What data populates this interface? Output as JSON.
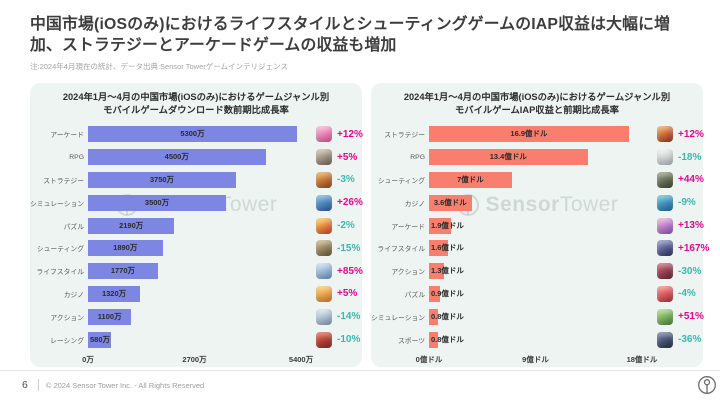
{
  "header": {
    "title": "中国市場(iOSのみ)におけるライフスタイルとシューティングゲームのIAP収益は大幅に増加、ストラテジーとアーケードゲームの収益も増加",
    "note": "注:2024年4月現在の統計、データ出典:Sensor Towerゲームインテリジェンス"
  },
  "watermark": {
    "brand_bold": "Sensor",
    "brand_light": "Tower"
  },
  "colors": {
    "positive_growth": "#e8078c",
    "negative_growth": "#3db9ac",
    "download_bar": "#7e86e3",
    "revenue_bar": "#f97e6d",
    "panel_background": "#edf4f2"
  },
  "chart_data": [
    {
      "type": "bar",
      "orientation": "horizontal",
      "title": "2024年1月〜4月の中国市場(iOSのみ)におけるゲームジャンル別",
      "subtitle": "モバイルゲームダウンロード数前期比成長率",
      "unit": "万",
      "xlim": [
        0,
        5400
      ],
      "x_ticks": [
        "0万",
        "2700万",
        "5400万"
      ],
      "grid": false,
      "bar_color": "#7e86e3",
      "categories": [
        "アーケード",
        "RPG",
        "ストラテジー",
        "シミュレーション",
        "パズル",
        "シューティング",
        "ライフスタイル",
        "カジノ",
        "アクション",
        "レーシング"
      ],
      "values": [
        5300,
        4500,
        3750,
        3500,
        2190,
        1890,
        1770,
        1320,
        1100,
        580
      ],
      "value_labels": [
        "5300万",
        "4500万",
        "3750万",
        "3500万",
        "2190万",
        "1890万",
        "1770万",
        "1320万",
        "1100万",
        "580万"
      ],
      "growth_rates": [
        "+12%",
        "+5%",
        "-3%",
        "+26%",
        "-2%",
        "-15%",
        "+85%",
        "+5%",
        "-14%",
        "-10%"
      ],
      "icons": [
        {
          "name": "arcade-game-app-icon",
          "colors": [
            "#f9b8d8",
            "#e8569c"
          ]
        },
        {
          "name": "rpg-game-app-icon",
          "colors": [
            "#cfc4b4",
            "#7a6a58"
          ]
        },
        {
          "name": "strategy-game-app-icon",
          "colors": [
            "#f0a850",
            "#9e4a24"
          ]
        },
        {
          "name": "simulation-game-app-icon",
          "colors": [
            "#74b4e0",
            "#2e5fa8"
          ]
        },
        {
          "name": "puzzle-game-app-icon",
          "colors": [
            "#fbd44e",
            "#d9402f"
          ]
        },
        {
          "name": "shooting-game-app-icon",
          "colors": [
            "#cdb98a",
            "#6d5b3e"
          ]
        },
        {
          "name": "lifestyle-game-app-icon",
          "colors": [
            "#cfe4f4",
            "#6e96c8"
          ]
        },
        {
          "name": "casino-game-app-icon",
          "colors": [
            "#fbd069",
            "#e2822e"
          ]
        },
        {
          "name": "action-game-app-icon",
          "colors": [
            "#dde8f2",
            "#8aa2bd"
          ]
        },
        {
          "name": "racing-game-app-icon",
          "colors": [
            "#e2604e",
            "#8e2a20"
          ]
        }
      ]
    },
    {
      "type": "bar",
      "orientation": "horizontal",
      "title": "2024年1月〜4月の中国市場(iOSのみ)におけるゲームジャンル別",
      "subtitle": "モバイルゲームIAP収益と前期比成長率",
      "unit": "億ドル",
      "xlim": [
        0,
        18
      ],
      "x_ticks": [
        "0億ドル",
        "9億ドル",
        "18億ドル"
      ],
      "grid": false,
      "bar_color": "#f97e6d",
      "categories": [
        "ストラテジー",
        "RPG",
        "シューティング",
        "カジノ",
        "アーケード",
        "ライフスタイル",
        "アクション",
        "パズル",
        "シミュレーション",
        "スポーツ"
      ],
      "values": [
        16.9,
        13.4,
        7,
        3.6,
        1.9,
        1.6,
        1.3,
        0.9,
        0.8,
        0.8
      ],
      "value_labels": [
        "16.9億ドル",
        "13.4億ドル",
        "7億ドル",
        "3.6億ドル",
        "1.9億ドル",
        "1.6億ドル",
        "1.3億ドル",
        "0.9億ドル",
        "0.8億ドル",
        "0.8億ドル"
      ],
      "growth_rates": [
        "+12%",
        "-18%",
        "+44%",
        "-9%",
        "+13%",
        "+167%",
        "-30%",
        "-4%",
        "+51%",
        "-36%"
      ],
      "icons": [
        {
          "name": "strategy-game-app-icon",
          "colors": [
            "#efae5a",
            "#ad2d1e"
          ]
        },
        {
          "name": "rpg-game-app-icon",
          "colors": [
            "#f5f5f3",
            "#b9bdc0"
          ]
        },
        {
          "name": "shooting-game-app-icon",
          "colors": [
            "#9aa080",
            "#3f4630"
          ]
        },
        {
          "name": "casino-game-app-icon",
          "colors": [
            "#63c4da",
            "#1f6cab"
          ]
        },
        {
          "name": "arcade-game-app-icon",
          "colors": [
            "#f3aed6",
            "#8e55c8"
          ]
        },
        {
          "name": "lifestyle-game-app-icon",
          "colors": [
            "#8b93c9",
            "#2e3566"
          ]
        },
        {
          "name": "action-game-app-icon",
          "colors": [
            "#c96273",
            "#6e2537"
          ]
        },
        {
          "name": "puzzle-game-app-icon",
          "colors": [
            "#f98a83",
            "#c22f3d"
          ]
        },
        {
          "name": "simulation-game-app-icon",
          "colors": [
            "#b5dd85",
            "#4c8b3b"
          ]
        },
        {
          "name": "sports-game-app-icon",
          "colors": [
            "#6e80a6",
            "#252e47"
          ]
        }
      ]
    }
  ],
  "footer": {
    "page_number": "6",
    "copyright": "© 2024 Sensor Tower Inc. - All Rights Reserved"
  }
}
